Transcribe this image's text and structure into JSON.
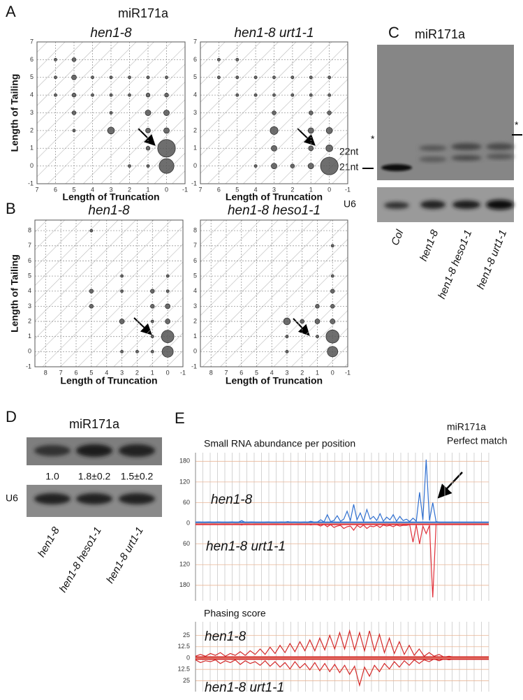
{
  "panel_labels": [
    "A",
    "B",
    "C",
    "D",
    "E"
  ],
  "figure_title": "miR171a",
  "chart_data": [
    {
      "type": "scatter",
      "title": "hen1-8",
      "x_label": "Length of Truncation",
      "y_label": "Length of Tailing",
      "x": [
        6,
        5,
        6,
        5,
        4,
        3,
        2,
        1,
        0,
        6,
        5,
        4,
        3,
        2,
        1,
        0,
        5,
        3,
        1,
        0,
        5,
        3,
        1,
        0,
        1,
        0,
        2,
        1,
        0
      ],
      "values": [
        6,
        6,
        5,
        5,
        5,
        5,
        5,
        5,
        5,
        4,
        4,
        4,
        4,
        4,
        4,
        4,
        3,
        3,
        3,
        3,
        2,
        2,
        2,
        2,
        1,
        1,
        0,
        0,
        0
      ],
      "sizes": [
        1,
        2,
        1,
        3,
        1,
        1,
        1,
        1,
        1,
        1,
        2,
        1,
        1,
        1,
        2,
        2,
        2,
        1,
        4,
        4,
        1,
        6,
        3,
        4,
        2,
        40,
        1,
        1,
        28
      ],
      "color": "#555555",
      "xlim": [
        7,
        -1
      ],
      "ylim": [
        -1,
        7
      ],
      "xticks": [
        7,
        6,
        5,
        4,
        3,
        2,
        1,
        0,
        -1
      ],
      "yticks": [
        -1,
        0,
        1,
        2,
        3,
        4,
        5,
        6,
        7
      ],
      "grid": true
    },
    {
      "type": "scatter",
      "title": "hen1-8 urt1-1",
      "x_label": "Length of Truncation",
      "x": [
        6,
        5,
        6,
        5,
        4,
        3,
        2,
        1,
        0,
        5,
        4,
        3,
        2,
        1,
        0,
        3,
        1,
        0,
        3,
        1,
        0,
        3,
        1,
        0,
        4,
        3,
        2,
        1,
        0
      ],
      "values": [
        6,
        6,
        5,
        5,
        5,
        5,
        5,
        5,
        5,
        4,
        4,
        4,
        4,
        4,
        4,
        3,
        3,
        3,
        2,
        2,
        2,
        1,
        1,
        1,
        0,
        0,
        0,
        0,
        0
      ],
      "sizes": [
        1,
        1,
        1,
        1,
        1,
        1,
        1,
        1,
        1,
        1,
        1,
        1,
        1,
        1,
        1,
        2,
        2,
        2,
        8,
        4,
        5,
        4,
        3,
        6,
        1,
        4,
        2,
        4,
        40
      ],
      "color": "#555555",
      "xlim": [
        7,
        -1
      ],
      "ylim": [
        -1,
        7
      ],
      "xticks": [
        7,
        6,
        5,
        4,
        3,
        2,
        1,
        0,
        -1
      ],
      "yticks": [
        -1,
        0,
        1,
        2,
        3,
        4,
        5,
        6,
        7
      ],
      "grid": true
    },
    {
      "type": "scatter",
      "title": "hen1-8",
      "x_label": "Length of Truncation",
      "y_label": "Length of Tailing",
      "x": [
        5,
        5,
        3,
        5,
        3,
        1,
        0,
        0,
        1,
        0,
        3,
        1,
        0,
        1,
        0,
        3,
        2,
        1,
        0
      ],
      "values": [
        8,
        4,
        5,
        3,
        4,
        4,
        5,
        4,
        3,
        3,
        2,
        2,
        2,
        1,
        1,
        0,
        0,
        0,
        0
      ],
      "sizes": [
        1,
        2,
        1,
        2,
        1,
        2,
        1,
        1,
        2,
        3,
        3,
        1,
        3,
        1,
        20,
        1,
        1,
        1,
        16
      ],
      "color": "#555555",
      "xlim": [
        8.7,
        -1
      ],
      "ylim": [
        -1,
        8.7
      ],
      "xticks": [
        8,
        7,
        6,
        5,
        4,
        3,
        2,
        1,
        0,
        -1
      ],
      "yticks": [
        -1,
        0,
        1,
        2,
        3,
        4,
        5,
        6,
        7,
        8
      ],
      "grid": true
    },
    {
      "type": "scatter",
      "title": "hen1-8 heso1-1",
      "x_label": "Length of Truncation",
      "x": [
        0,
        0,
        0,
        1,
        0,
        3,
        2,
        1,
        0,
        3,
        1,
        0,
        3,
        0
      ],
      "values": [
        7,
        5,
        4,
        3,
        3,
        2,
        2,
        2,
        2,
        1,
        1,
        1,
        0,
        0
      ],
      "sizes": [
        1,
        1,
        2,
        2,
        2,
        6,
        2,
        3,
        3,
        1,
        1,
        22,
        1,
        14
      ],
      "color": "#555555",
      "xlim": [
        8.7,
        -1
      ],
      "ylim": [
        -1,
        8.7
      ],
      "xticks": [
        8,
        7,
        6,
        5,
        4,
        3,
        2,
        1,
        0,
        -1
      ],
      "yticks": [
        -1,
        0,
        1,
        2,
        3,
        4,
        5,
        6,
        7,
        8
      ],
      "grid": true
    },
    {
      "type": "line",
      "title": "Small RNA abundance per position",
      "annotation": [
        "miR171a",
        "Perfect match"
      ],
      "series": [
        {
          "name": "hen1-8",
          "color": "#2f6fd0",
          "values": [
            3,
            4,
            3,
            3,
            4,
            3,
            3,
            4,
            3,
            3,
            3,
            4,
            3,
            3,
            8,
            3,
            3,
            4,
            3,
            3,
            3,
            3,
            4,
            3,
            3,
            3,
            4,
            3,
            5,
            3,
            4,
            3,
            3,
            4,
            3,
            6,
            3,
            4,
            10,
            4,
            25,
            5,
            8,
            22,
            6,
            12,
            35,
            8,
            55,
            10,
            30,
            6,
            40,
            12,
            20,
            8,
            28,
            6,
            18,
            10,
            25,
            6,
            20,
            8,
            12,
            5,
            15,
            6,
            90,
            10,
            185,
            8,
            60,
            5,
            3,
            3,
            3,
            3,
            3,
            3,
            3,
            3,
            3,
            3,
            3,
            3,
            3,
            3,
            3,
            3
          ]
        },
        {
          "name": "hen1-8 urt1-1",
          "color": "#e0303a",
          "values": [
            -2,
            -3,
            -2,
            -2,
            -3,
            -2,
            -2,
            -3,
            -2,
            -2,
            -2,
            -3,
            -2,
            -2,
            -5,
            -2,
            -2,
            -3,
            -2,
            -2,
            -2,
            -2,
            -3,
            -2,
            -2,
            -2,
            -3,
            -2,
            -4,
            -2,
            -3,
            -2,
            -2,
            -3,
            -2,
            -5,
            -2,
            -4,
            -8,
            -3,
            -10,
            -4,
            -12,
            -8,
            -6,
            -15,
            -10,
            -8,
            -20,
            -6,
            -12,
            -5,
            -15,
            -8,
            -10,
            -6,
            -12,
            -5,
            -8,
            -6,
            -10,
            -5,
            -8,
            -6,
            -6,
            -4,
            -55,
            -5,
            -60,
            -8,
            -30,
            -6,
            -215,
            -4,
            -2,
            -2,
            -2,
            -2,
            -2,
            -2,
            -2,
            -2,
            -2,
            -2,
            -2,
            -2,
            -2,
            -2,
            -2,
            -2
          ]
        }
      ],
      "ylim": [
        -225,
        205
      ],
      "yticks": [
        180,
        120,
        60,
        0,
        {
          "value": -60,
          "label": "60"
        },
        {
          "value": -120,
          "label": "120"
        },
        {
          "value": -180,
          "label": "180"
        }
      ],
      "grid": true
    },
    {
      "type": "line",
      "title": "Phasing score",
      "series": [
        {
          "name": "hen1-8",
          "color": "#d42a2a",
          "values": [
            2,
            4,
            2,
            5,
            3,
            6,
            2,
            5,
            3,
            7,
            3,
            8,
            4,
            10,
            4,
            12,
            5,
            14,
            6,
            16,
            7,
            18,
            8,
            20,
            8,
            22,
            9,
            25,
            10,
            28,
            10,
            30,
            9,
            28,
            8,
            30,
            8,
            26,
            6,
            22,
            5,
            18,
            4,
            14,
            3,
            10,
            2,
            6,
            2,
            4,
            1,
            2,
            1,
            1,
            1,
            1,
            1,
            1,
            1,
            1
          ]
        },
        {
          "name": "hen1-8 urt1-1",
          "color": "#d42a2a",
          "values": [
            -2,
            -5,
            -3,
            -4,
            -2,
            -6,
            -3,
            -5,
            -2,
            -7,
            -3,
            -6,
            -4,
            -8,
            -3,
            -9,
            -4,
            -10,
            -5,
            -12,
            -4,
            -11,
            -6,
            -13,
            -5,
            -14,
            -6,
            -15,
            -7,
            -16,
            -8,
            -18,
            -9,
            -30,
            -10,
            -20,
            -8,
            -15,
            -6,
            -12,
            -4,
            -10,
            -3,
            -8,
            -2,
            -6,
            -2,
            -4,
            -1,
            -3,
            -1,
            -2,
            -1,
            -1,
            -1,
            -1,
            -1,
            -1,
            -1,
            -1
          ]
        }
      ],
      "ylim": [
        -37,
        40
      ],
      "yticks": [
        25,
        12.5,
        0,
        {
          "value": -12.5,
          "label": "12.5"
        },
        {
          "value": -25,
          "label": "25"
        }
      ],
      "grid": true
    }
  ],
  "blot_c": {
    "title": "miR171a",
    "size_markers": [
      "22nt",
      "21nt"
    ],
    "asterisks": [
      "*",
      "*"
    ],
    "loading_control": "U6",
    "lanes": [
      "Col",
      "hen1-8",
      "hen1-8 heso1-1",
      "hen1-8 urt1-1"
    ]
  },
  "blot_d": {
    "title": "miR171a",
    "quantification": [
      "1.0",
      "1.8±0.2",
      "1.5±0.2"
    ],
    "loading_control": "U6",
    "lanes": [
      "hen1-8",
      "hen1-8 heso1-1",
      "hen1-8 urt1-1"
    ]
  }
}
